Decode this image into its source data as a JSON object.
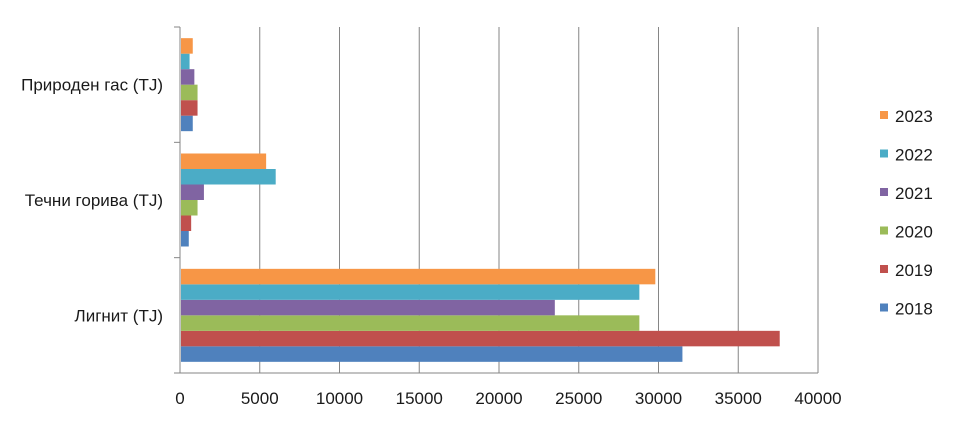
{
  "chart_data": {
    "type": "bar",
    "orientation": "horizontal",
    "categories": [
      "Лигнит (TJ)",
      "Течни горива (TJ)",
      "Природен гас (TJ)"
    ],
    "series": [
      {
        "name": "2018",
        "color": "#4f81bd",
        "values": [
          31500,
          550,
          800
        ]
      },
      {
        "name": "2019",
        "color": "#c0504d",
        "values": [
          37600,
          700,
          1100
        ]
      },
      {
        "name": "2020",
        "color": "#9bbb59",
        "values": [
          28800,
          1100,
          1100
        ]
      },
      {
        "name": "2021",
        "color": "#8064a2",
        "values": [
          23500,
          1500,
          900
        ]
      },
      {
        "name": "2022",
        "color": "#4bacc6",
        "values": [
          28800,
          6000,
          600
        ]
      },
      {
        "name": "2023",
        "color": "#f79646",
        "values": [
          29800,
          5400,
          800
        ]
      }
    ],
    "xlim": [
      0,
      40000
    ],
    "xticks": [
      "0",
      "5000",
      "10000",
      "15000",
      "20000",
      "25000",
      "30000",
      "35000",
      "40000"
    ],
    "grid": "vertical gridlines",
    "legend_position": "right",
    "legend_order": [
      "2023",
      "2022",
      "2021",
      "2020",
      "2019",
      "2018"
    ]
  }
}
